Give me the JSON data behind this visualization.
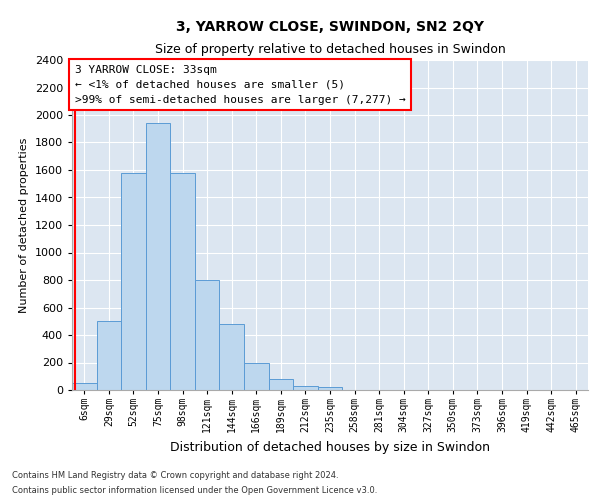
{
  "title": "3, YARROW CLOSE, SWINDON, SN2 2QY",
  "subtitle": "Size of property relative to detached houses in Swindon",
  "xlabel": "Distribution of detached houses by size in Swindon",
  "ylabel": "Number of detached properties",
  "footnote1": "Contains HM Land Registry data © Crown copyright and database right 2024.",
  "footnote2": "Contains public sector information licensed under the Open Government Licence v3.0.",
  "annotation_line1": "3 YARROW CLOSE: 33sqm",
  "annotation_line2": "← <1% of detached houses are smaller (5)",
  "annotation_line3": ">99% of semi-detached houses are larger (7,277) →",
  "bar_labels": [
    "6sqm",
    "29sqm",
    "52sqm",
    "75sqm",
    "98sqm",
    "121sqm",
    "144sqm",
    "166sqm",
    "189sqm",
    "212sqm",
    "235sqm",
    "258sqm",
    "281sqm",
    "304sqm",
    "327sqm",
    "350sqm",
    "373sqm",
    "396sqm",
    "419sqm",
    "442sqm",
    "465sqm"
  ],
  "bar_values": [
    50,
    500,
    1580,
    1940,
    1580,
    800,
    480,
    200,
    80,
    30,
    20,
    0,
    0,
    0,
    0,
    0,
    0,
    0,
    0,
    0,
    0
  ],
  "bar_color": "#bdd7ee",
  "bar_edge_color": "#5b9bd5",
  "red_line_x": -0.38,
  "ylim": [
    0,
    2400
  ],
  "yticks": [
    0,
    200,
    400,
    600,
    800,
    1000,
    1200,
    1400,
    1600,
    1800,
    2000,
    2200,
    2400
  ],
  "bg_color": "#dce6f1",
  "title_fontsize": 10,
  "subtitle_fontsize": 9,
  "annotation_fontsize": 8,
  "ylabel_fontsize": 8,
  "xlabel_fontsize": 9,
  "footnote_fontsize": 6
}
